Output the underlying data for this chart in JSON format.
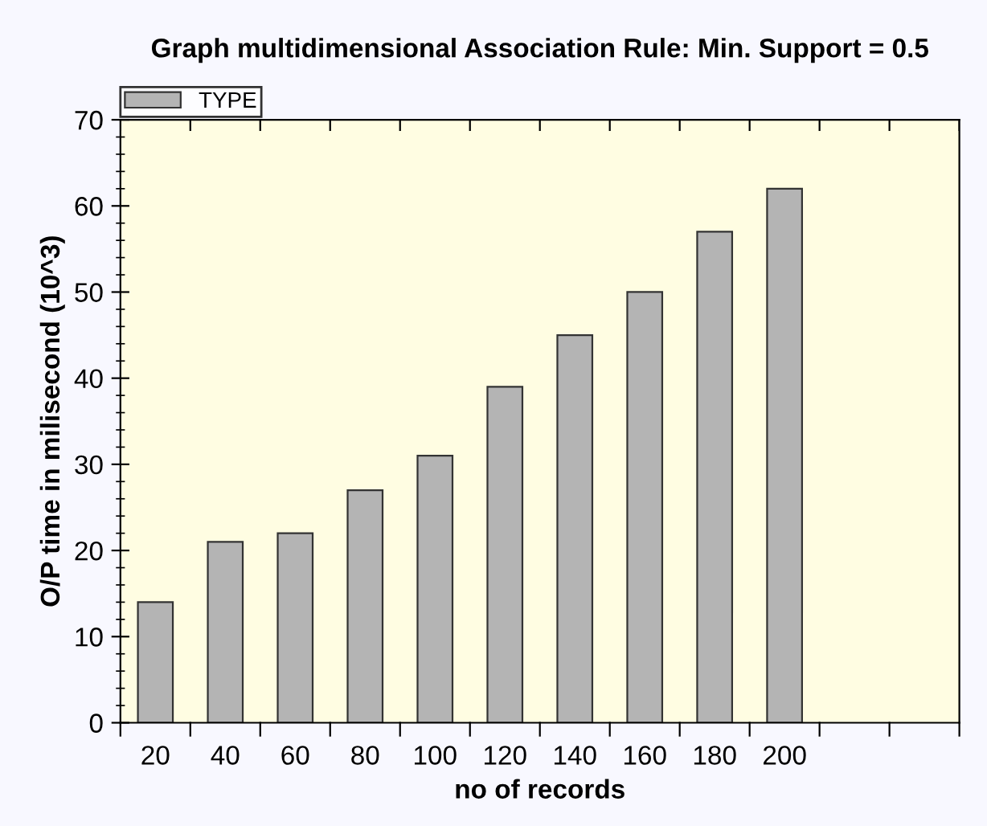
{
  "chart_data": {
    "type": "bar",
    "title": "Graph multidimensional Association Rule: Min. Support = 0.5",
    "xlabel": "no of records",
    "ylabel": "O/P time in milisecond (10^3)",
    "categories": [
      "20",
      "40",
      "60",
      "80",
      "100",
      "120",
      "140",
      "160",
      "180",
      "200",
      null,
      null
    ],
    "series": [
      {
        "name": "TYPE",
        "color": "#b4b4b4",
        "values": [
          14,
          21,
          22,
          27,
          31,
          39,
          45,
          50,
          57,
          62,
          null,
          null
        ]
      }
    ],
    "ylim": [
      0,
      70
    ],
    "yticks": [
      0,
      10,
      20,
      30,
      40,
      50,
      60,
      70
    ],
    "grid": false,
    "legend": "top left"
  }
}
